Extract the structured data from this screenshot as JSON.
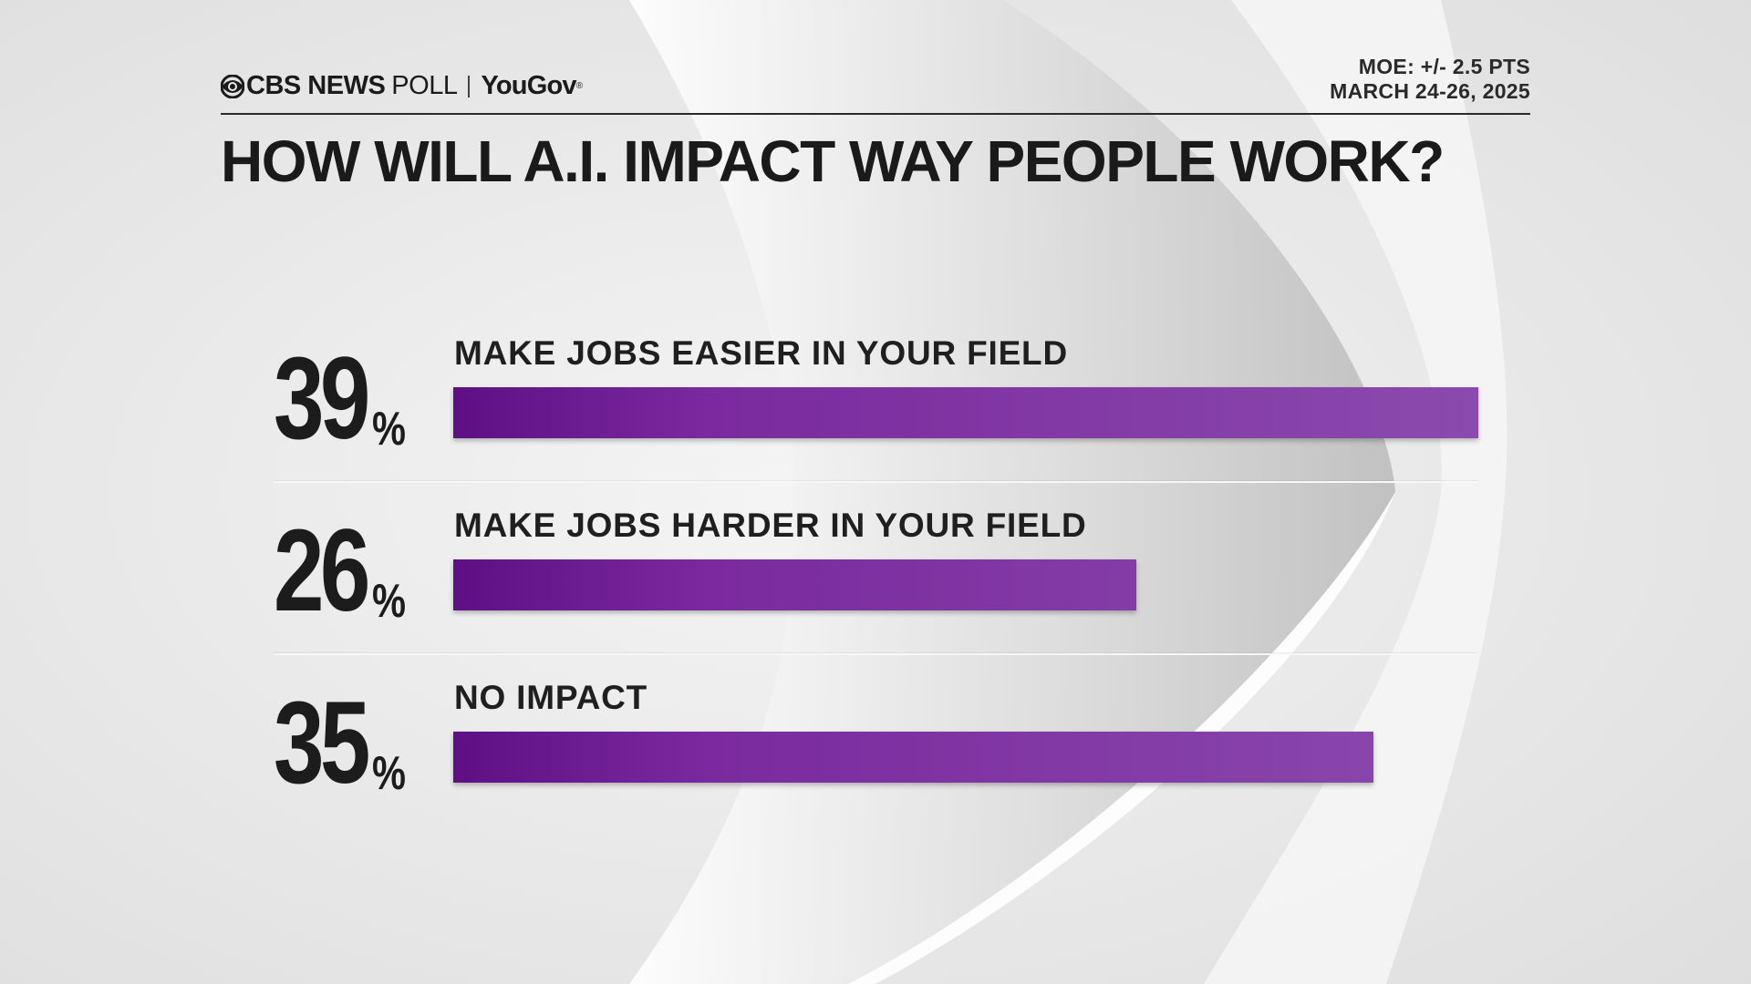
{
  "header": {
    "brand_cbs": "CBS NEWS",
    "brand_poll": "POLL",
    "brand_yougov": "YouGov",
    "brand_reg": "®",
    "moe": "MOE: +/- 2.5 PTS",
    "date": "MARCH 24-26, 2025"
  },
  "colors": {
    "bar_start": "#5e0f84",
    "bar_end": "#8b4aad",
    "text": "#1c1c1c",
    "background": "#e9e9e9"
  },
  "chart_data": {
    "type": "bar",
    "orientation": "horizontal",
    "title": "HOW WILL A.I. IMPACT WAY PEOPLE WORK?",
    "xlim": [
      0,
      39
    ],
    "percent_sign": "%",
    "categories": [
      "MAKE JOBS EASIER IN YOUR FIELD",
      "MAKE JOBS HARDER IN YOUR FIELD",
      "NO IMPACT"
    ],
    "values": [
      39,
      26,
      35
    ]
  }
}
